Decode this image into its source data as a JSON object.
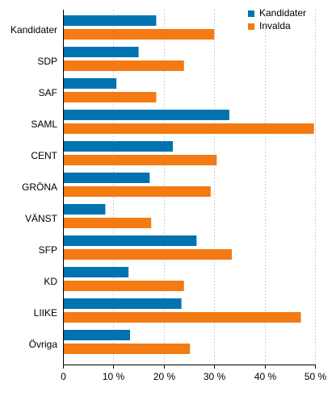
{
  "chart_data": {
    "type": "bar",
    "orientation": "horizontal",
    "categories": [
      "Kandidater",
      "SDP",
      "SAF",
      "SAML",
      "CENT",
      "GRÖNA",
      "VÄNST",
      "SFP",
      "KD",
      "LIIKE",
      "Övriga"
    ],
    "series": [
      {
        "name": "Kandidater",
        "color": "#0073b0",
        "values": [
          18.5,
          15.0,
          10.6,
          33.0,
          21.8,
          17.2,
          8.4,
          26.5,
          13.0,
          23.5,
          13.3
        ]
      },
      {
        "name": "Invalda",
        "color": "#f47a14",
        "values": [
          30.0,
          24.0,
          18.5,
          49.8,
          30.5,
          29.3,
          17.5,
          33.5,
          24.0,
          47.2,
          25.2
        ]
      }
    ],
    "xlim": [
      0,
      50
    ],
    "xticks": [
      0,
      10,
      20,
      30,
      40,
      50
    ],
    "xtick_labels": [
      "0",
      "10 %",
      "20 %",
      "30 %",
      "40 %",
      "50 %"
    ],
    "grid": true,
    "legend_position": "top-right",
    "title": "",
    "xlabel": "",
    "ylabel": ""
  }
}
